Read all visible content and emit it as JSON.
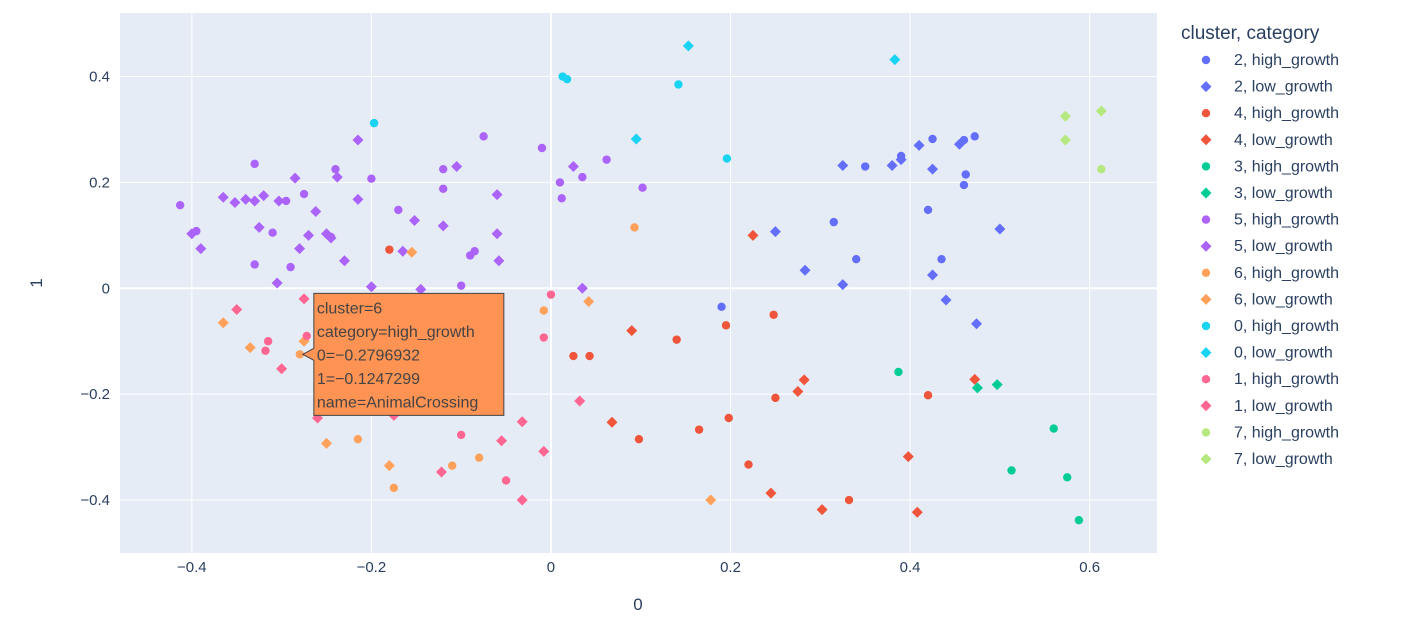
{
  "chart_data": {
    "type": "scatter",
    "xlabel": "0",
    "ylabel": "1",
    "xlim": [
      -0.48,
      0.675
    ],
    "ylim": [
      -0.5,
      0.52
    ],
    "x_ticks": [
      -0.4,
      -0.2,
      0,
      0.2,
      0.4,
      0.6
    ],
    "y_ticks": [
      -0.4,
      -0.2,
      0,
      0.2,
      0.4
    ],
    "x_tick_labels": [
      "−0.4",
      "−0.2",
      "0",
      "0.2",
      "0.4",
      "0.6"
    ],
    "y_tick_labels": [
      "−0.4",
      "−0.2",
      "0",
      "0.2",
      "0.4"
    ],
    "grid": true,
    "legend_title": "cluster, category",
    "legend_position": "right",
    "series": [
      {
        "name": "2, high_growth",
        "color": "#636efa",
        "symbol": "circle",
        "points": [
          [
            0.19,
            -0.035
          ],
          [
            0.315,
            0.125
          ],
          [
            0.34,
            0.055
          ],
          [
            0.35,
            0.23
          ],
          [
            0.39,
            0.25
          ],
          [
            0.42,
            0.148
          ],
          [
            0.425,
            0.282
          ],
          [
            0.435,
            0.055
          ],
          [
            0.46,
            0.28
          ],
          [
            0.46,
            0.195
          ],
          [
            0.462,
            0.215
          ],
          [
            0.472,
            0.287
          ]
        ]
      },
      {
        "name": "2, low_growth",
        "color": "#636efa",
        "symbol": "diamond",
        "points": [
          [
            0.25,
            0.107
          ],
          [
            0.283,
            0.034
          ],
          [
            0.325,
            0.232
          ],
          [
            0.325,
            0.007
          ],
          [
            0.38,
            0.232
          ],
          [
            0.39,
            0.243
          ],
          [
            0.41,
            0.27
          ],
          [
            0.425,
            0.225
          ],
          [
            0.425,
            0.025
          ],
          [
            0.44,
            -0.022
          ],
          [
            0.455,
            0.272
          ],
          [
            0.474,
            -0.067
          ],
          [
            0.5,
            0.112
          ]
        ]
      },
      {
        "name": "4, high_growth",
        "color": "#ef553b",
        "symbol": "circle",
        "points": [
          [
            -0.18,
            0.073
          ],
          [
            0.025,
            -0.128
          ],
          [
            0.043,
            -0.128
          ],
          [
            0.098,
            -0.285
          ],
          [
            0.14,
            -0.097
          ],
          [
            0.165,
            -0.267
          ],
          [
            0.195,
            -0.07
          ],
          [
            0.198,
            -0.245
          ],
          [
            0.22,
            -0.333
          ],
          [
            0.248,
            -0.05
          ],
          [
            0.25,
            -0.207
          ],
          [
            0.332,
            -0.4
          ],
          [
            0.42,
            -0.202
          ]
        ]
      },
      {
        "name": "4, low_growth",
        "color": "#ef553b",
        "symbol": "diamond",
        "points": [
          [
            0.068,
            -0.253
          ],
          [
            0.09,
            -0.08
          ],
          [
            0.225,
            0.1
          ],
          [
            0.245,
            -0.387
          ],
          [
            0.275,
            -0.195
          ],
          [
            0.282,
            -0.173
          ],
          [
            0.302,
            -0.418
          ],
          [
            0.398,
            -0.318
          ],
          [
            0.408,
            -0.423
          ],
          [
            0.472,
            -0.172
          ]
        ]
      },
      {
        "name": "3, high_growth",
        "color": "#00cc96",
        "symbol": "circle",
        "points": [
          [
            0.387,
            -0.158
          ],
          [
            0.513,
            -0.344
          ],
          [
            0.56,
            -0.265
          ],
          [
            0.575,
            -0.357
          ],
          [
            0.588,
            -0.438
          ]
        ]
      },
      {
        "name": "3, low_growth",
        "color": "#00cc96",
        "symbol": "diamond",
        "points": [
          [
            0.475,
            -0.188
          ],
          [
            0.497,
            -0.182
          ]
        ]
      },
      {
        "name": "5, high_growth",
        "color": "#ab63fa",
        "symbol": "circle",
        "points": [
          [
            -0.413,
            0.157
          ],
          [
            -0.395,
            0.108
          ],
          [
            -0.33,
            0.235
          ],
          [
            -0.33,
            0.045
          ],
          [
            -0.31,
            0.105
          ],
          [
            -0.295,
            0.165
          ],
          [
            -0.29,
            0.04
          ],
          [
            -0.275,
            0.178
          ],
          [
            -0.245,
            0.097
          ],
          [
            -0.24,
            0.225
          ],
          [
            -0.2,
            0.207
          ],
          [
            -0.17,
            0.148
          ],
          [
            -0.12,
            0.188
          ],
          [
            -0.12,
            0.225
          ],
          [
            -0.1,
            0.005
          ],
          [
            -0.09,
            0.062
          ],
          [
            -0.085,
            0.07
          ],
          [
            -0.075,
            0.287
          ],
          [
            -0.01,
            0.265
          ],
          [
            0.01,
            0.2
          ],
          [
            0.012,
            0.17
          ],
          [
            0.035,
            0.21
          ],
          [
            0.062,
            0.243
          ],
          [
            0.102,
            0.19
          ]
        ]
      },
      {
        "name": "5, low_growth",
        "color": "#ab63fa",
        "symbol": "diamond",
        "points": [
          [
            -0.4,
            0.103
          ],
          [
            -0.39,
            0.075
          ],
          [
            -0.365,
            0.172
          ],
          [
            -0.352,
            0.162
          ],
          [
            -0.34,
            0.168
          ],
          [
            -0.33,
            0.165
          ],
          [
            -0.325,
            0.115
          ],
          [
            -0.32,
            0.175
          ],
          [
            -0.305,
            0.01
          ],
          [
            -0.303,
            0.165
          ],
          [
            -0.285,
            0.208
          ],
          [
            -0.28,
            0.075
          ],
          [
            -0.27,
            0.1
          ],
          [
            -0.262,
            0.145
          ],
          [
            -0.25,
            0.103
          ],
          [
            -0.245,
            0.095
          ],
          [
            -0.238,
            0.21
          ],
          [
            -0.23,
            0.052
          ],
          [
            -0.215,
            0.28
          ],
          [
            -0.215,
            0.168
          ],
          [
            -0.2,
            0.003
          ],
          [
            -0.165,
            0.07
          ],
          [
            -0.152,
            0.128
          ],
          [
            -0.145,
            -0.002
          ],
          [
            -0.12,
            0.118
          ],
          [
            -0.105,
            0.23
          ],
          [
            -0.06,
            0.177
          ],
          [
            -0.06,
            0.103
          ],
          [
            -0.058,
            0.052
          ],
          [
            0.025,
            0.23
          ],
          [
            0.035,
            0.0
          ]
        ]
      },
      {
        "name": "6, high_growth",
        "color": "#ffa15a",
        "symbol": "circle",
        "points": [
          [
            -0.2796932,
            -0.1247299
          ],
          [
            -0.215,
            -0.285
          ],
          [
            -0.175,
            -0.377
          ],
          [
            -0.11,
            -0.335
          ],
          [
            -0.08,
            -0.32
          ],
          [
            -0.008,
            -0.042
          ],
          [
            0.093,
            0.115
          ]
        ]
      },
      {
        "name": "6, low_growth",
        "color": "#ffa15a",
        "symbol": "diamond",
        "points": [
          [
            -0.365,
            -0.065
          ],
          [
            -0.335,
            -0.112
          ],
          [
            -0.275,
            -0.1
          ],
          [
            -0.25,
            -0.293
          ],
          [
            -0.18,
            -0.335
          ],
          [
            -0.155,
            0.068
          ],
          [
            0.042,
            -0.025
          ],
          [
            0.178,
            -0.4
          ]
        ]
      },
      {
        "name": "0, high_growth",
        "color": "#19d3f3",
        "symbol": "circle",
        "points": [
          [
            -0.197,
            0.312
          ],
          [
            0.013,
            0.4
          ],
          [
            0.018,
            0.395
          ],
          [
            0.142,
            0.385
          ],
          [
            0.196,
            0.245
          ]
        ]
      },
      {
        "name": "0, low_growth",
        "color": "#19d3f3",
        "symbol": "diamond",
        "points": [
          [
            0.095,
            0.282
          ],
          [
            0.153,
            0.458
          ],
          [
            0.383,
            0.432
          ]
        ]
      },
      {
        "name": "1, high_growth",
        "color": "#ff6692",
        "symbol": "circle",
        "points": [
          [
            -0.315,
            -0.1
          ],
          [
            -0.318,
            -0.118
          ],
          [
            -0.272,
            -0.09
          ],
          [
            -0.1,
            -0.277
          ],
          [
            -0.05,
            -0.363
          ],
          [
            -0.008,
            -0.093
          ],
          [
            0.0,
            -0.012
          ]
        ]
      },
      {
        "name": "1, low_growth",
        "color": "#ff6692",
        "symbol": "diamond",
        "points": [
          [
            -0.35,
            -0.04
          ],
          [
            -0.3,
            -0.152
          ],
          [
            -0.275,
            -0.02
          ],
          [
            -0.26,
            -0.245
          ],
          [
            -0.175,
            -0.24
          ],
          [
            -0.122,
            -0.347
          ],
          [
            -0.055,
            -0.288
          ],
          [
            -0.032,
            -0.252
          ],
          [
            -0.032,
            -0.4
          ],
          [
            -0.008,
            -0.308
          ],
          [
            0.032,
            -0.213
          ]
        ]
      },
      {
        "name": "7, high_growth",
        "color": "#b6e880",
        "symbol": "circle",
        "points": [
          [
            0.613,
            0.225
          ]
        ]
      },
      {
        "name": "7, low_growth",
        "color": "#b6e880",
        "symbol": "diamond",
        "points": [
          [
            0.573,
            0.325
          ],
          [
            0.573,
            0.28
          ],
          [
            0.613,
            0.335
          ]
        ]
      }
    ],
    "tooltip": {
      "series": "6, high_growth",
      "point_index": 0,
      "lines": [
        "cluster=6",
        "category=high_growth",
        "0=−0.2796932",
        "1=−0.1247299",
        "name=AnimalCrossing"
      ]
    }
  }
}
